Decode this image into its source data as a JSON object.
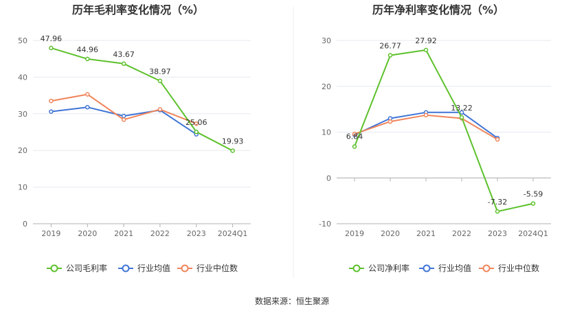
{
  "source": "数据来源：恒生聚源",
  "colors": {
    "company": "#5cc12b",
    "industry_avg": "#3f74d6",
    "industry_median": "#f0845a",
    "grid": "#e5e8ef",
    "axis": "#b0b0b0"
  },
  "chart_data": [
    {
      "type": "line",
      "title": "历年毛利率变化情况（%）",
      "categories": [
        "2019",
        "2020",
        "2021",
        "2022",
        "2023",
        "2024Q1"
      ],
      "ylim": [
        0,
        50
      ],
      "yticks": [
        0,
        10,
        20,
        30,
        40,
        50
      ],
      "series": [
        {
          "name": "公司毛利率",
          "color_key": "company",
          "labeled": true,
          "values": [
            47.96,
            44.96,
            43.67,
            38.97,
            25.06,
            19.93
          ],
          "labels": [
            "47.96",
            "44.96",
            "43.67",
            "38.97",
            "25.06",
            "19.93"
          ]
        },
        {
          "name": "行业均值",
          "color_key": "industry_avg",
          "labeled": false,
          "values": [
            30.6,
            31.8,
            29.4,
            31.0,
            24.4,
            null
          ]
        },
        {
          "name": "行业中位数",
          "color_key": "industry_median",
          "labeled": false,
          "values": [
            33.5,
            35.3,
            28.4,
            31.2,
            27.3,
            null
          ]
        }
      ]
    },
    {
      "type": "line",
      "title": "历年净利率变化情况（%）",
      "categories": [
        "2019",
        "2020",
        "2021",
        "2022",
        "2023",
        "2024Q1"
      ],
      "ylim": [
        -10,
        30
      ],
      "yticks": [
        -10,
        0,
        10,
        20,
        30
      ],
      "series": [
        {
          "name": "公司净利率",
          "color_key": "company",
          "labeled": true,
          "values": [
            6.84,
            26.77,
            27.92,
            13.22,
            -7.32,
            -5.59
          ],
          "labels": [
            "6.84",
            "26.77",
            "27.92",
            "13.22",
            "-7.32",
            "-5.59"
          ]
        },
        {
          "name": "行业均值",
          "color_key": "industry_avg",
          "labeled": false,
          "values": [
            9.4,
            13.0,
            14.3,
            14.3,
            8.7,
            null
          ]
        },
        {
          "name": "行业中位数",
          "color_key": "industry_median",
          "labeled": false,
          "values": [
            9.6,
            12.3,
            13.7,
            13.0,
            8.4,
            null
          ]
        }
      ]
    }
  ]
}
